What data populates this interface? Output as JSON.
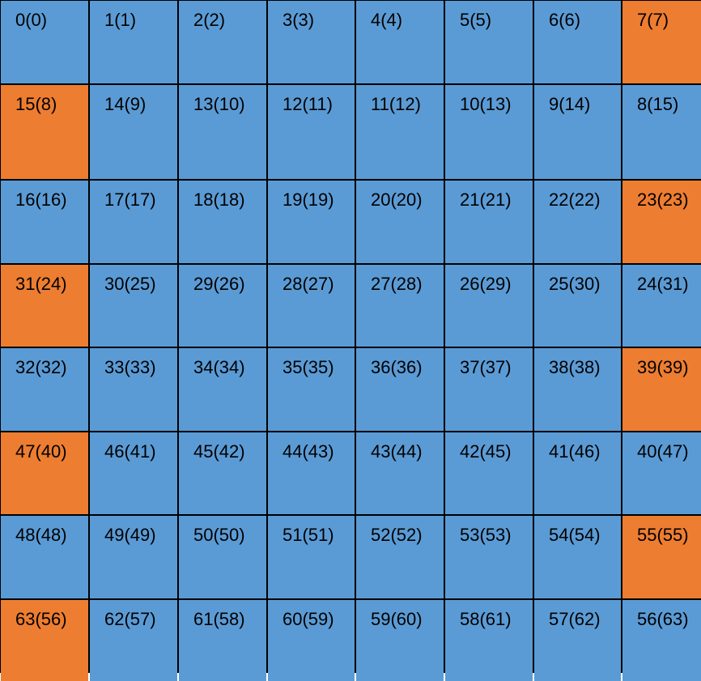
{
  "colors": {
    "normal": "#5b9bd5",
    "highlight": "#ed7d31",
    "border": "#000000"
  },
  "rows": [
    [
      {
        "label": "0(0)",
        "highlight": false
      },
      {
        "label": "1(1)",
        "highlight": false
      },
      {
        "label": "2(2)",
        "highlight": false
      },
      {
        "label": "3(3)",
        "highlight": false
      },
      {
        "label": "4(4)",
        "highlight": false
      },
      {
        "label": "5(5)",
        "highlight": false
      },
      {
        "label": "6(6)",
        "highlight": false
      },
      {
        "label": "7(7)",
        "highlight": true
      }
    ],
    [
      {
        "label": "15(8)",
        "highlight": true
      },
      {
        "label": "14(9)",
        "highlight": false
      },
      {
        "label": "13(10)",
        "highlight": false
      },
      {
        "label": "12(11)",
        "highlight": false
      },
      {
        "label": "11(12)",
        "highlight": false
      },
      {
        "label": "10(13)",
        "highlight": false
      },
      {
        "label": "9(14)",
        "highlight": false
      },
      {
        "label": "8(15)",
        "highlight": false
      }
    ],
    [
      {
        "label": "16(16)",
        "highlight": false
      },
      {
        "label": "17(17)",
        "highlight": false
      },
      {
        "label": "18(18)",
        "highlight": false
      },
      {
        "label": "19(19)",
        "highlight": false
      },
      {
        "label": "20(20)",
        "highlight": false
      },
      {
        "label": "21(21)",
        "highlight": false
      },
      {
        "label": "22(22)",
        "highlight": false
      },
      {
        "label": "23(23)",
        "highlight": true
      }
    ],
    [
      {
        "label": "31(24)",
        "highlight": true
      },
      {
        "label": "30(25)",
        "highlight": false
      },
      {
        "label": "29(26)",
        "highlight": false
      },
      {
        "label": "28(27)",
        "highlight": false
      },
      {
        "label": "27(28)",
        "highlight": false
      },
      {
        "label": "26(29)",
        "highlight": false
      },
      {
        "label": "25(30)",
        "highlight": false
      },
      {
        "label": "24(31)",
        "highlight": false
      }
    ],
    [
      {
        "label": "32(32)",
        "highlight": false
      },
      {
        "label": "33(33)",
        "highlight": false
      },
      {
        "label": "34(34)",
        "highlight": false
      },
      {
        "label": "35(35)",
        "highlight": false
      },
      {
        "label": "36(36)",
        "highlight": false
      },
      {
        "label": "37(37)",
        "highlight": false
      },
      {
        "label": "38(38)",
        "highlight": false
      },
      {
        "label": "39(39)",
        "highlight": true
      }
    ],
    [
      {
        "label": "47(40)",
        "highlight": true
      },
      {
        "label": "46(41)",
        "highlight": false
      },
      {
        "label": "45(42)",
        "highlight": false
      },
      {
        "label": "44(43)",
        "highlight": false
      },
      {
        "label": "43(44)",
        "highlight": false
      },
      {
        "label": "42(45)",
        "highlight": false
      },
      {
        "label": "41(46)",
        "highlight": false
      },
      {
        "label": "40(47)",
        "highlight": false
      }
    ],
    [
      {
        "label": "48(48)",
        "highlight": false
      },
      {
        "label": "49(49)",
        "highlight": false
      },
      {
        "label": "50(50)",
        "highlight": false
      },
      {
        "label": "51(51)",
        "highlight": false
      },
      {
        "label": "52(52)",
        "highlight": false
      },
      {
        "label": "53(53)",
        "highlight": false
      },
      {
        "label": "54(54)",
        "highlight": false
      },
      {
        "label": "55(55)",
        "highlight": true
      }
    ],
    [
      {
        "label": "63(56)",
        "highlight": true
      },
      {
        "label": "62(57)",
        "highlight": false
      },
      {
        "label": "61(58)",
        "highlight": false
      },
      {
        "label": "60(59)",
        "highlight": false
      },
      {
        "label": "59(60)",
        "highlight": false
      },
      {
        "label": "58(61)",
        "highlight": false
      },
      {
        "label": "57(62)",
        "highlight": false
      },
      {
        "label": "56(63)",
        "highlight": false
      }
    ]
  ]
}
